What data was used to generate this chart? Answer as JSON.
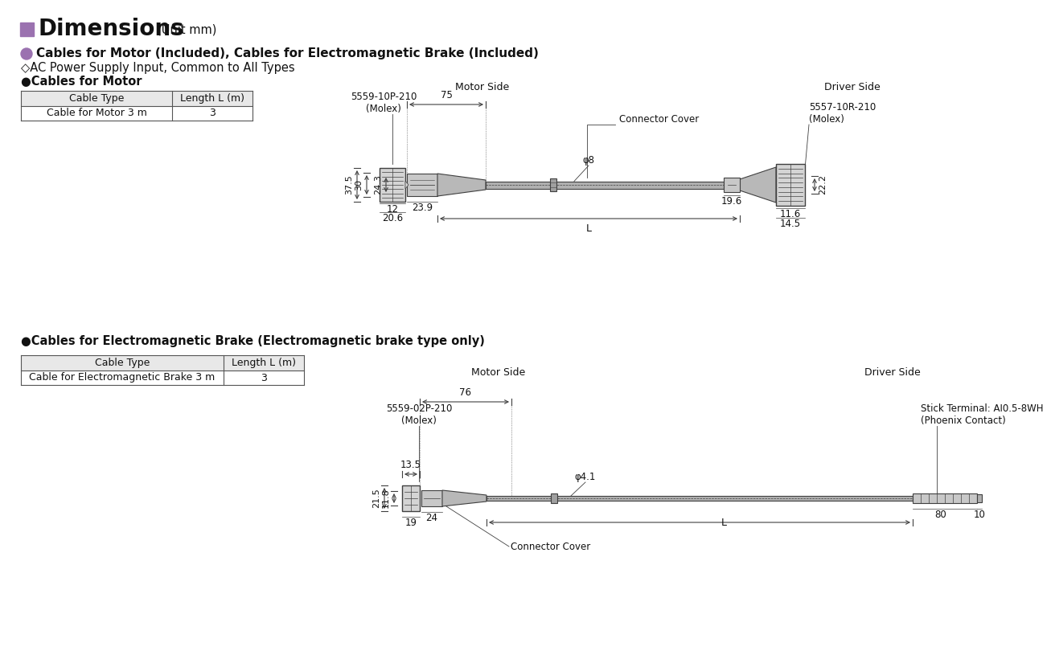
{
  "title": "Dimensions",
  "title_unit": "(Unit mm)",
  "title_color": "#9b72b0",
  "bg_color": "#ffffff",
  "section1_header": "Cables for Motor (Included), Cables for Electromagnetic Brake (Included)",
  "section1_sub1": "AC Power Supply Input, Common to All Types",
  "section1_sub2": "Cables for Motor",
  "table1_headers": [
    "Cable Type",
    "Length L (m)"
  ],
  "table1_data": [
    [
      "Cable for Motor 3 m",
      "3"
    ]
  ],
  "motor_side_label": "Motor Side",
  "driver_side_label": "Driver Side",
  "dim_75": "75",
  "connector1_label": "5559-10P-210\n(Molex)",
  "connector2_label": "5557-10R-210\n(Molex)",
  "connector_cover_label": "Connector Cover",
  "dim_37_5": "37.5",
  "dim_30": "30",
  "dim_24_3": "24.3",
  "dim_12": "12",
  "dim_20_6": "20.6",
  "dim_23_9": "23.9",
  "dim_L": "L",
  "dim_phi8": "φ8",
  "dim_19_6": "19.6",
  "dim_22_2": "22.2",
  "dim_11_6": "11.6",
  "dim_14_5": "14.5",
  "section2_header": "Cables for Electromagnetic Brake (Electromagnetic brake type only)",
  "table2_headers": [
    "Cable Type",
    "Length L (m)"
  ],
  "table2_data": [
    [
      "Cable for Electromagnetic Brake 3 m",
      "3"
    ]
  ],
  "motor_side_label2": "Motor Side",
  "driver_side_label2": "Driver Side",
  "dim_76": "76",
  "connector3_label": "5559-02P-210\n(Molex)",
  "stick_terminal_label": "Stick Terminal: AI0.5-8WH\n(Phoenix Contact)",
  "connector_cover_label2": "Connector Cover",
  "dim_13_5": "13.5",
  "dim_21_5": "21.5",
  "dim_11_8": "11.8",
  "dim_19": "19",
  "dim_24": "24",
  "dim_phi4_1": "φ4.1",
  "dim_L2": "L",
  "dim_80": "80",
  "dim_10": "10",
  "line_color": "#404040",
  "dim_line_color": "#404040",
  "table_header_bg": "#e8e8e8",
  "table_border_color": "#555555"
}
